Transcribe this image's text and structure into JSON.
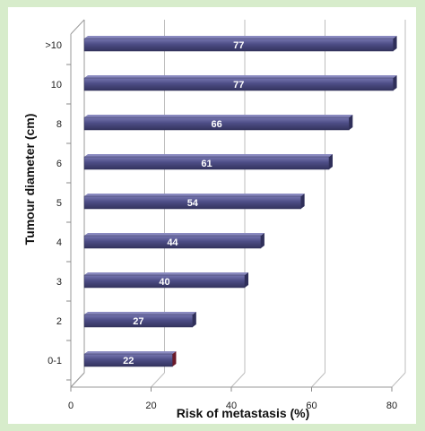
{
  "chart_data": {
    "type": "bar",
    "orientation": "horizontal",
    "categories": [
      "0-1",
      "2",
      "3",
      "4",
      "5",
      "6",
      "8",
      "10",
      ">10"
    ],
    "values": [
      22,
      27,
      40,
      44,
      54,
      61,
      66,
      77,
      77
    ],
    "data_labels": [
      "22",
      "27",
      "40",
      "44",
      "54",
      "61",
      "66",
      "77",
      "77"
    ],
    "xlabel": "Risk of metastasis (%)",
    "ylabel": "Tumour diameter (cm)",
    "xlim": [
      0,
      80
    ],
    "xticks": [
      0,
      20,
      40,
      60,
      80
    ],
    "xtick_labels": [
      "0",
      "20",
      "40",
      "60",
      "80"
    ],
    "grid": "vertical",
    "bar_color": "#4d4d86",
    "highlight_color": "#6b1a2a",
    "background_color": "#d7eccb"
  }
}
